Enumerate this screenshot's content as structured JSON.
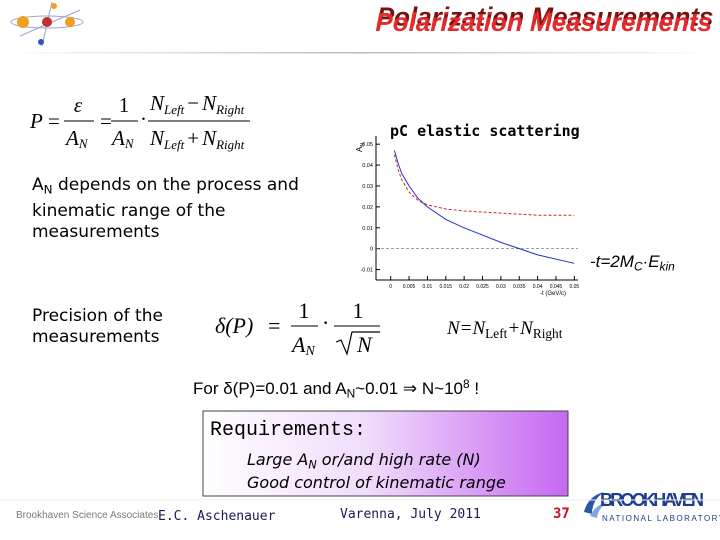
{
  "header": {
    "title": "Polarization Measurements"
  },
  "polarization_formula": {
    "lhs": "P",
    "equals": "=",
    "epsilon": "ε",
    "asym": [
      "A",
      "N"
    ],
    "one": "1",
    "dot": "·",
    "numerator": [
      "N",
      "Left",
      "−",
      "N",
      "Right"
    ],
    "denominator": [
      "N",
      "Left",
      "+",
      "N",
      "Right"
    ]
  },
  "an_statement": {
    "symbol": [
      "A",
      "N"
    ],
    "text": " depends on the process and kinematic range of the measurements"
  },
  "kinematics": [
    "-t=2M",
    "C",
    "·E",
    "kin"
  ],
  "precision_label": "Precision of the measurements",
  "precision_formula": {
    "lhs": "δ(P)",
    "equals": "=",
    "one": "1",
    "asym": [
      "A",
      "N"
    ],
    "dot": "·",
    "count": "N"
  },
  "count_definition": [
    "N=N",
    "Left",
    "+N",
    "Right"
  ],
  "estimate": [
    "For δ(P)=0.01 and A",
    "N",
    "~0.01 ⇒ N~10",
    "8",
    " !"
  ],
  "requirements": {
    "heading": "Requirements:",
    "items": [
      [
        "Large A",
        "N",
        " or/and high rate (N)"
      ],
      "Good control of kinematic range"
    ]
  },
  "footer": {
    "organization": "Brookhaven Science Associates",
    "author": "E.C. Aschenauer",
    "venue": "Varenna, July 2011",
    "page": "37",
    "lab_name": "BROOKHAVEN",
    "lab_subtitle": "NATIONAL LABORATORY"
  },
  "plot": {
    "title": "pC elastic scattering",
    "ylabel": "A",
    "ylabel_sub": "N",
    "xlabel": "-t (GeV/c)",
    "xlim": [
      -0.004,
      0.051
    ],
    "ylim": [
      -0.015,
      0.052
    ],
    "xticks": [
      0,
      0.005,
      0.01,
      0.015,
      0.02,
      0.025,
      0.03,
      0.035,
      0.04,
      0.045,
      0.05
    ],
    "yticks": [
      -0.01,
      0,
      0.01,
      0.02,
      0.03,
      0.04,
      0.05
    ],
    "x": [
      0.001,
      0.002,
      0.003,
      0.005,
      0.0075,
      0.01,
      0.015,
      0.02,
      0.03,
      0.04,
      0.05
    ],
    "series": [
      {
        "color": "#d02828",
        "line_style": "dashed",
        "values": [
          0.045,
          0.038,
          0.033,
          0.027,
          0.023,
          0.021,
          0.019,
          0.018,
          0.017,
          0.016,
          0.016
        ]
      },
      {
        "color": "#2434c4",
        "line_style": "solid",
        "values": [
          0.047,
          0.041,
          0.036,
          0.03,
          0.024,
          0.02,
          0.014,
          0.01,
          0.003,
          -0.003,
          -0.007
        ]
      }
    ]
  }
}
